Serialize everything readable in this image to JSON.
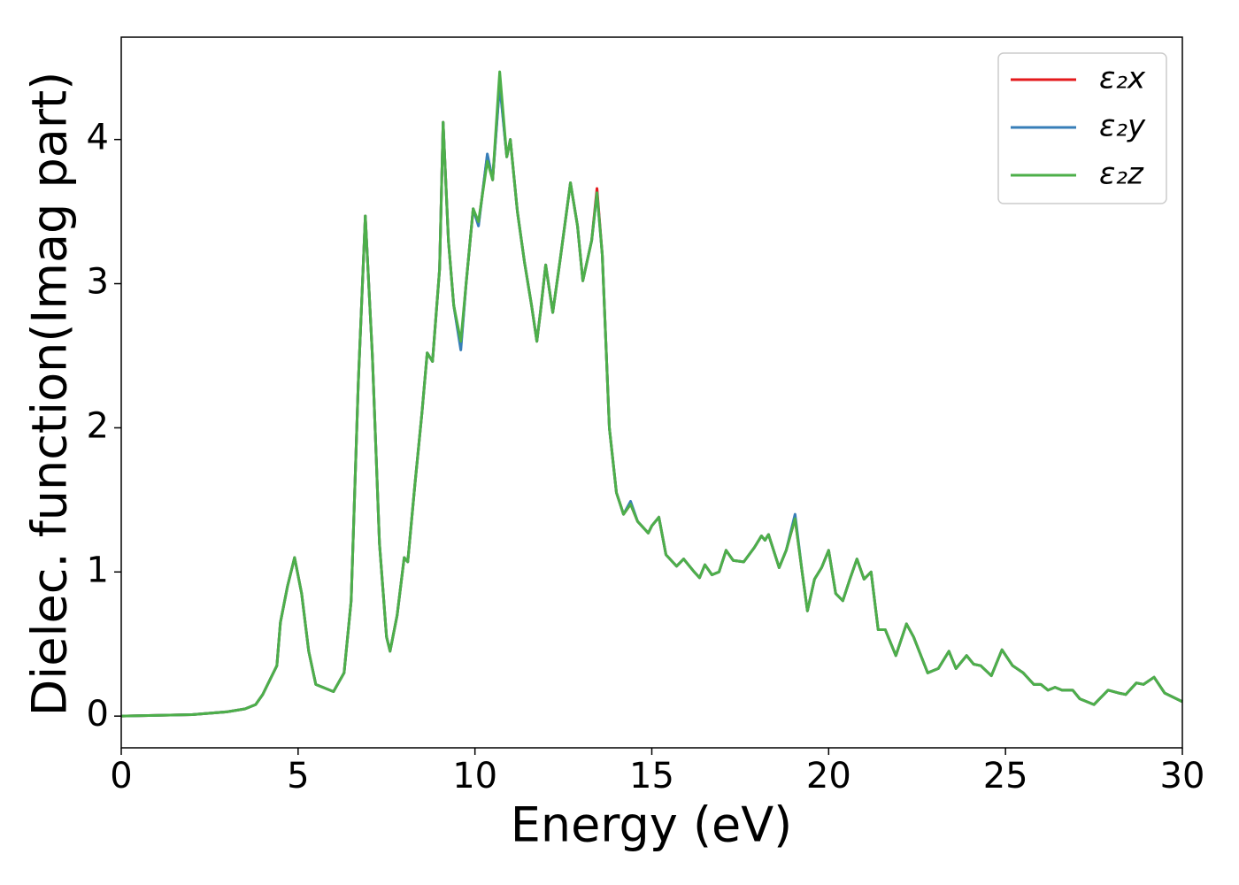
{
  "chart_data": {
    "type": "line",
    "xlabel": "Energy (eV)",
    "ylabel": "Dielec. function(Imag part)",
    "x": [
      0,
      2,
      3,
      3.5,
      3.8,
      4,
      4.2,
      4.4,
      4.5,
      4.7,
      4.9,
      5.1,
      5.3,
      5.5,
      5.8,
      6,
      6.3,
      6.5,
      6.7,
      6.9,
      7.1,
      7.3,
      7.5,
      7.6,
      7.8,
      8,
      8.1,
      8.3,
      8.5,
      8.65,
      8.8,
      9,
      9.1,
      9.25,
      9.4,
      9.6,
      9.75,
      9.95,
      10.1,
      10.35,
      10.5,
      10.7,
      10.9,
      11,
      11.2,
      11.4,
      11.6,
      11.75,
      11.85,
      12,
      12.2,
      12.4,
      12.7,
      12.9,
      13.05,
      13.3,
      13.45,
      13.6,
      13.8,
      14,
      14.2,
      14.4,
      14.6,
      14.9,
      15,
      15.2,
      15.4,
      15.7,
      15.9,
      16.2,
      16.35,
      16.5,
      16.7,
      16.9,
      17.1,
      17.3,
      17.6,
      17.9,
      18.1,
      18.2,
      18.3,
      18.6,
      18.8,
      19.05,
      19.25,
      19.4,
      19.6,
      19.8,
      20,
      20.2,
      20.4,
      20.6,
      20.8,
      21,
      21.2,
      21.4,
      21.6,
      21.9,
      22.2,
      22.4,
      22.8,
      23.1,
      23.4,
      23.6,
      23.9,
      24.1,
      24.3,
      24.6,
      24.9,
      25.2,
      25.5,
      25.8,
      26,
      26.2,
      26.4,
      26.6,
      26.9,
      27.1,
      27.5,
      27.9,
      28.2,
      28.4,
      28.7,
      28.9,
      29.2,
      29.5,
      30
    ],
    "series": [
      {
        "name": "ε₂x",
        "color": "#e41a1c",
        "values": [
          0,
          0.01,
          0.03,
          0.05,
          0.08,
          0.15,
          0.25,
          0.35,
          0.65,
          0.9,
          1.1,
          0.85,
          0.45,
          0.22,
          0.19,
          0.17,
          0.3,
          0.8,
          2.3,
          3.47,
          2.5,
          1.2,
          0.55,
          0.45,
          0.7,
          1.1,
          1.07,
          1.6,
          2.1,
          2.52,
          2.46,
          3.1,
          4.12,
          3.3,
          2.85,
          2.56,
          3.0,
          3.52,
          3.41,
          3.89,
          3.72,
          4.4,
          3.88,
          4.0,
          3.5,
          3.15,
          2.85,
          2.6,
          2.8,
          3.13,
          2.8,
          3.15,
          3.7,
          3.4,
          3.02,
          3.3,
          3.66,
          3.2,
          2.0,
          1.55,
          1.4,
          1.47,
          1.35,
          1.27,
          1.32,
          1.38,
          1.12,
          1.04,
          1.09,
          1.0,
          0.96,
          1.05,
          0.98,
          1.0,
          1.15,
          1.08,
          1.07,
          1.17,
          1.25,
          1.22,
          1.26,
          1.03,
          1.15,
          1.37,
          1.0,
          0.73,
          0.95,
          1.03,
          1.15,
          0.85,
          0.8,
          0.95,
          1.09,
          0.95,
          1.0,
          0.6,
          0.6,
          0.42,
          0.64,
          0.55,
          0.3,
          0.33,
          0.45,
          0.33,
          0.42,
          0.36,
          0.35,
          0.28,
          0.46,
          0.35,
          0.3,
          0.22,
          0.22,
          0.18,
          0.2,
          0.18,
          0.18,
          0.12,
          0.08,
          0.18,
          0.16,
          0.15,
          0.23,
          0.22,
          0.27,
          0.16,
          0.1
        ]
      },
      {
        "name": "ε₂y",
        "color": "#377eb8",
        "values": [
          0,
          0.01,
          0.03,
          0.05,
          0.08,
          0.15,
          0.25,
          0.35,
          0.65,
          0.9,
          1.1,
          0.85,
          0.45,
          0.22,
          0.19,
          0.17,
          0.3,
          0.8,
          2.3,
          3.47,
          2.5,
          1.2,
          0.55,
          0.45,
          0.7,
          1.1,
          1.07,
          1.6,
          2.1,
          2.52,
          2.46,
          3.1,
          4.12,
          3.3,
          2.85,
          2.54,
          3.0,
          3.52,
          3.4,
          3.9,
          3.72,
          4.38,
          3.88,
          4.0,
          3.5,
          3.15,
          2.85,
          2.6,
          2.8,
          3.13,
          2.8,
          3.15,
          3.7,
          3.4,
          3.02,
          3.3,
          3.63,
          3.2,
          2.0,
          1.55,
          1.4,
          1.49,
          1.35,
          1.27,
          1.32,
          1.38,
          1.12,
          1.04,
          1.09,
          1.0,
          0.96,
          1.05,
          0.98,
          1.0,
          1.15,
          1.08,
          1.07,
          1.17,
          1.25,
          1.22,
          1.26,
          1.03,
          1.15,
          1.4,
          1.0,
          0.73,
          0.95,
          1.03,
          1.15,
          0.85,
          0.8,
          0.95,
          1.09,
          0.95,
          1.0,
          0.6,
          0.6,
          0.42,
          0.64,
          0.55,
          0.3,
          0.33,
          0.45,
          0.33,
          0.42,
          0.36,
          0.35,
          0.28,
          0.46,
          0.35,
          0.3,
          0.22,
          0.22,
          0.18,
          0.2,
          0.18,
          0.18,
          0.12,
          0.08,
          0.18,
          0.16,
          0.15,
          0.23,
          0.22,
          0.27,
          0.16,
          0.1
        ]
      },
      {
        "name": "ε₂z",
        "color": "#4daf4a",
        "values": [
          0,
          0.01,
          0.03,
          0.05,
          0.08,
          0.15,
          0.25,
          0.35,
          0.65,
          0.9,
          1.1,
          0.85,
          0.45,
          0.22,
          0.19,
          0.17,
          0.3,
          0.8,
          2.3,
          3.47,
          2.5,
          1.2,
          0.55,
          0.45,
          0.7,
          1.1,
          1.07,
          1.6,
          2.1,
          2.52,
          2.46,
          3.1,
          4.12,
          3.3,
          2.85,
          2.6,
          3.0,
          3.52,
          3.43,
          3.85,
          3.72,
          4.47,
          3.88,
          4.0,
          3.5,
          3.15,
          2.85,
          2.6,
          2.8,
          3.13,
          2.8,
          3.15,
          3.7,
          3.4,
          3.02,
          3.3,
          3.63,
          3.2,
          2.0,
          1.55,
          1.4,
          1.47,
          1.35,
          1.27,
          1.32,
          1.38,
          1.12,
          1.04,
          1.09,
          1.0,
          0.96,
          1.05,
          0.98,
          1.0,
          1.15,
          1.08,
          1.07,
          1.17,
          1.25,
          1.22,
          1.26,
          1.03,
          1.15,
          1.37,
          1.0,
          0.73,
          0.95,
          1.03,
          1.15,
          0.85,
          0.8,
          0.95,
          1.09,
          0.95,
          1.0,
          0.6,
          0.6,
          0.42,
          0.64,
          0.55,
          0.3,
          0.33,
          0.45,
          0.33,
          0.42,
          0.36,
          0.35,
          0.28,
          0.46,
          0.35,
          0.3,
          0.22,
          0.22,
          0.18,
          0.2,
          0.18,
          0.18,
          0.12,
          0.08,
          0.18,
          0.16,
          0.15,
          0.23,
          0.22,
          0.27,
          0.16,
          0.1
        ]
      }
    ],
    "xlim": [
      0,
      30
    ],
    "xticks": [
      0,
      5,
      10,
      15,
      20,
      25,
      30
    ],
    "ylim": [
      -0.22,
      4.71
    ],
    "yticks": [
      0,
      1,
      2,
      3,
      4
    ],
    "grid": false,
    "legend": "upper right"
  }
}
